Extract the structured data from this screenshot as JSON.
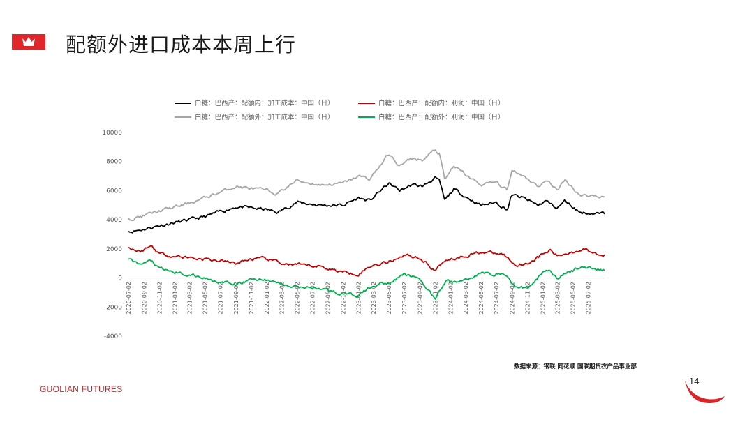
{
  "slide": {
    "title": "配额外进口成本本周上行",
    "source": "数据来源：钢联  同花顺  国联期货农产品事业部",
    "brand": "GUOLIAN FUTURES",
    "page_number": "14",
    "brand_color": "#e0262a"
  },
  "chart_data": {
    "type": "line",
    "title": "",
    "xlabel": "",
    "ylabel": "",
    "ylim": [
      -4000,
      10000
    ],
    "yticks": [
      -4000,
      -2000,
      0,
      2000,
      4000,
      6000,
      8000,
      10000
    ],
    "xlim": [
      "2020-07-02",
      "2025-09-05"
    ],
    "xticks": [
      "2020-07-02",
      "2020-09-02",
      "2020-11-02",
      "2021-01-02",
      "2021-03-02",
      "2021-05-02",
      "2021-07-02",
      "2021-09-02",
      "2021-11-02",
      "2022-01-02",
      "2022-03-02",
      "2022-05-02",
      "2022-07-02",
      "2022-09-02",
      "2022-11-02",
      "2023-01-02",
      "2023-03-02",
      "2023-05-02",
      "2023-07-02",
      "2023-09-02",
      "2023-11-02",
      "2024-01-02",
      "2024-03-02",
      "2024-05-02",
      "2024-07-02",
      "2024-09-02",
      "2024-11-02",
      "2025-01-02",
      "2025-03-02",
      "2025-05-02",
      "2025-07-02"
    ],
    "grid": false,
    "legend_position": "top",
    "series": [
      {
        "name": "白糖：巴西产：配额内：加工成本：中国（日）",
        "color": "#000000",
        "x": [
          "2020-07-02",
          "2020-08-15",
          "2020-11-01",
          "2021-02-01",
          "2021-05-01",
          "2021-09-01",
          "2022-01-01",
          "2022-02-15",
          "2022-05-01",
          "2022-08-01",
          "2022-11-01",
          "2023-01-01",
          "2023-02-15",
          "2023-05-01",
          "2023-06-15",
          "2023-08-01",
          "2023-09-15",
          "2023-11-01",
          "2023-11-20",
          "2023-12-10",
          "2024-01-15",
          "2024-03-01",
          "2024-05-01",
          "2024-07-01",
          "2024-08-15",
          "2024-09-01",
          "2024-10-15",
          "2024-12-15",
          "2025-01-15",
          "2025-03-01",
          "2025-04-01",
          "2025-06-01",
          "2025-09-05"
        ],
        "values": [
          3200,
          3300,
          3600,
          3900,
          4200,
          4900,
          4700,
          4500,
          5200,
          5000,
          5000,
          5500,
          5300,
          6500,
          6000,
          6400,
          6300,
          6900,
          6600,
          5300,
          6100,
          5600,
          5000,
          5200,
          4700,
          5700,
          5500,
          5000,
          5300,
          4800,
          5300,
          4500,
          4400
        ]
      },
      {
        "name": "白糖：巴西产：配额外：加工成本：中国（日）",
        "color": "#a6a6a6",
        "x": [
          "2020-07-02",
          "2020-08-15",
          "2020-11-01",
          "2021-02-01",
          "2021-05-01",
          "2021-09-01",
          "2022-01-01",
          "2022-02-15",
          "2022-05-01",
          "2022-08-01",
          "2022-11-01",
          "2023-01-01",
          "2023-02-15",
          "2023-05-01",
          "2023-06-15",
          "2023-08-01",
          "2023-09-15",
          "2023-11-01",
          "2023-11-20",
          "2023-12-10",
          "2024-01-15",
          "2024-03-01",
          "2024-05-01",
          "2024-07-01",
          "2024-08-15",
          "2024-09-01",
          "2024-10-15",
          "2024-12-15",
          "2025-01-15",
          "2025-03-01",
          "2025-04-01",
          "2025-06-01",
          "2025-09-05"
        ],
        "values": [
          4100,
          4200,
          4600,
          5000,
          5500,
          6300,
          6000,
          5800,
          6700,
          6400,
          6500,
          7000,
          6800,
          8500,
          7700,
          8200,
          8100,
          8800,
          8500,
          6700,
          7700,
          7100,
          6400,
          6600,
          6000,
          7400,
          7100,
          6300,
          6700,
          6100,
          6700,
          5700,
          5600
        ]
      },
      {
        "name": "白糖：巴西产：配额内：利润：中国（日）",
        "color": "#c00000",
        "x": [
          "2020-07-02",
          "2020-08-15",
          "2020-10-01",
          "2020-11-01",
          "2021-01-01",
          "2021-05-01",
          "2021-09-01",
          "2021-11-01",
          "2022-01-01",
          "2022-04-01",
          "2022-08-01",
          "2022-11-01",
          "2023-01-01",
          "2023-03-01",
          "2023-05-01",
          "2023-07-01",
          "2023-09-01",
          "2023-11-01",
          "2023-12-15",
          "2024-02-01",
          "2024-05-01",
          "2024-08-01",
          "2024-09-15",
          "2024-11-01",
          "2025-01-01",
          "2025-02-01",
          "2025-03-01",
          "2025-05-01",
          "2025-06-15",
          "2025-09-05"
        ],
        "values": [
          2100,
          1800,
          2200,
          1700,
          1500,
          1300,
          1000,
          1300,
          1300,
          900,
          800,
          400,
          300,
          900,
          1100,
          1600,
          1400,
          500,
          1300,
          1400,
          1800,
          1600,
          900,
          1000,
          1600,
          1900,
          1500,
          1800,
          2000,
          1600
        ]
      },
      {
        "name": "白糖：巴西产：配额外：利润：中国（日）",
        "color": "#00b050",
        "x": [
          "2020-07-02",
          "2020-08-15",
          "2020-10-01",
          "2020-11-01",
          "2021-01-01",
          "2021-05-01",
          "2021-09-01",
          "2021-11-01",
          "2022-01-01",
          "2022-04-01",
          "2022-08-01",
          "2022-11-01",
          "2023-01-01",
          "2023-03-01",
          "2023-05-01",
          "2023-07-01",
          "2023-09-01",
          "2023-11-01",
          "2023-12-15",
          "2024-02-01",
          "2024-05-01",
          "2024-08-01",
          "2024-09-15",
          "2024-11-01",
          "2025-01-01",
          "2025-02-01",
          "2025-03-01",
          "2025-05-01",
          "2025-06-15",
          "2025-09-05"
        ],
        "values": [
          1300,
          900,
          1200,
          600,
          400,
          0,
          -500,
          -100,
          -100,
          -600,
          -700,
          -1100,
          -1200,
          -500,
          -300,
          200,
          0,
          -1500,
          -200,
          -300,
          300,
          300,
          -600,
          -700,
          400,
          600,
          0,
          500,
          800,
          500
        ]
      }
    ]
  }
}
